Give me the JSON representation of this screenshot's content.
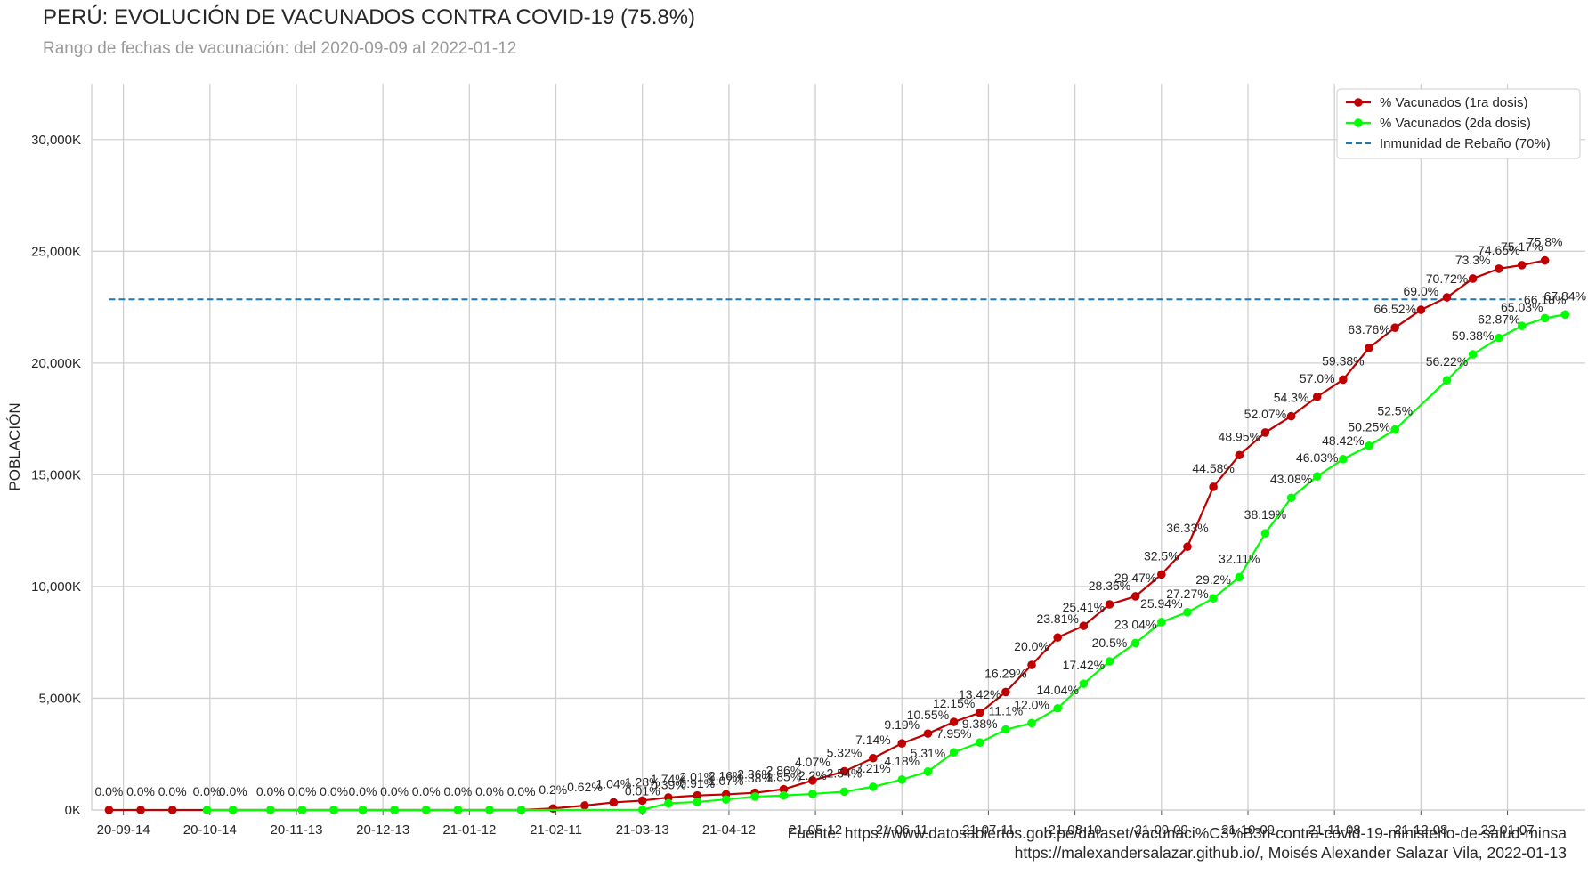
{
  "chart_data": {
    "type": "line",
    "title": "PERÚ: EVOLUCIÓN DE VACUNADOS CONTRA COVID-19 (75.8%)",
    "subtitle": "Rango de fechas de vacunación: del 2020-09-09 al 2022-01-12",
    "xlabel": "",
    "ylabel": "POBLACIÓN",
    "x_ticks": [
      "20-09-14",
      "20-10-14",
      "20-11-13",
      "20-12-13",
      "21-01-12",
      "21-02-11",
      "21-03-13",
      "21-04-12",
      "21-05-12",
      "21-06-11",
      "21-07-11",
      "21-08-10",
      "21-09-09",
      "21-10-09",
      "21-11-08",
      "21-12-08",
      "22-01-07"
    ],
    "y_ticks": [
      "0K",
      "5,000K",
      "10,000K",
      "15,000K",
      "20,000K",
      "25,000K",
      "30,000K"
    ],
    "xlim": [
      "2020-09-03",
      "2022-01-34"
    ],
    "ylim": [
      0,
      32500
    ],
    "grid": true,
    "legend_position": "top-right",
    "colors": {
      "dose1": "#c00000",
      "dose2": "#00ff00",
      "herd": "#1f77b4"
    },
    "reference_line": {
      "name": "Inmunidad de Rebaño (70%)",
      "y": 22850,
      "x_start": "2020-09-09",
      "x_end": "2022-01-12"
    },
    "series": [
      {
        "name": "% Vacunados (1ra dosis)",
        "points": [
          {
            "x": "2020-09-09",
            "y": 0,
            "label": "0.0%"
          },
          {
            "x": "2020-09-20",
            "y": 0,
            "label": "0.0%"
          },
          {
            "x": "2020-10-01",
            "y": 0,
            "label": "0.0%"
          },
          {
            "x": "2020-10-13",
            "y": 0,
            "label": "0.0%"
          },
          {
            "x": "2020-10-22",
            "y": 0,
            "label": "0.0%"
          },
          {
            "x": "2020-11-04",
            "y": 0,
            "label": "0.0%"
          },
          {
            "x": "2020-11-15",
            "y": 0,
            "label": "0.0%"
          },
          {
            "x": "2020-11-26",
            "y": 0,
            "label": "0.0%"
          },
          {
            "x": "2020-12-06",
            "y": 0,
            "label": "0.0%"
          },
          {
            "x": "2020-12-17",
            "y": 0,
            "label": "0.0%"
          },
          {
            "x": "2020-12-28",
            "y": 0,
            "label": "0.0%"
          },
          {
            "x": "2021-01-08",
            "y": 0,
            "label": "0.0%"
          },
          {
            "x": "2021-01-19",
            "y": 0,
            "label": "0.0%"
          },
          {
            "x": "2021-01-30",
            "y": 0,
            "label": "0.0%"
          },
          {
            "x": "2021-02-10",
            "y": 70,
            "label": "0.2%"
          },
          {
            "x": "2021-02-21",
            "y": 200,
            "label": "0.62%"
          },
          {
            "x": "2021-03-03",
            "y": 340,
            "label": "1.04%"
          },
          {
            "x": "2021-03-13",
            "y": 420,
            "label": "1.28%"
          },
          {
            "x": "2021-03-22",
            "y": 560,
            "label": "1.74%"
          },
          {
            "x": "2021-04-01",
            "y": 650,
            "label": "2.01%"
          },
          {
            "x": "2021-04-11",
            "y": 700,
            "label": "2.16%"
          },
          {
            "x": "2021-04-21",
            "y": 770,
            "label": "2.36%"
          },
          {
            "x": "2021-05-01",
            "y": 930,
            "label": "2.86%"
          },
          {
            "x": "2021-05-11",
            "y": 1320,
            "label": "4.07%"
          },
          {
            "x": "2021-05-22",
            "y": 1730,
            "label": "5.32%"
          },
          {
            "x": "2021-06-01",
            "y": 2320,
            "label": "7.14%"
          },
          {
            "x": "2021-06-11",
            "y": 2980,
            "label": "9.19%"
          },
          {
            "x": "2021-06-20",
            "y": 3420,
            "label": "10.55%"
          },
          {
            "x": "2021-06-29",
            "y": 3940,
            "label": "12.15%"
          },
          {
            "x": "2021-07-08",
            "y": 4350,
            "label": "13.42%"
          },
          {
            "x": "2021-07-17",
            "y": 5280,
            "label": "16.29%"
          },
          {
            "x": "2021-07-26",
            "y": 6490,
            "label": "20.0%"
          },
          {
            "x": "2021-08-04",
            "y": 7720,
            "label": "23.81%"
          },
          {
            "x": "2021-08-13",
            "y": 8240,
            "label": "25.41%"
          },
          {
            "x": "2021-08-22",
            "y": 9200,
            "label": "28.36%"
          },
          {
            "x": "2021-08-31",
            "y": 9560,
            "label": "29.47%"
          },
          {
            "x": "2021-09-09",
            "y": 10540,
            "label": "32.5%"
          },
          {
            "x": "2021-09-18",
            "y": 11780,
            "label": "36.33%"
          },
          {
            "x": "2021-09-27",
            "y": 14460,
            "label": "44.58%"
          },
          {
            "x": "2021-10-06",
            "y": 15880,
            "label": "48.95%"
          },
          {
            "x": "2021-10-15",
            "y": 16890,
            "label": "52.07%"
          },
          {
            "x": "2021-10-24",
            "y": 17620,
            "label": "54.3%"
          },
          {
            "x": "2021-11-02",
            "y": 18490,
            "label": "57.0%"
          },
          {
            "x": "2021-11-11",
            "y": 19260,
            "label": "59.38%"
          },
          {
            "x": "2021-11-20",
            "y": 20680,
            "label": "63.76%"
          },
          {
            "x": "2021-11-29",
            "y": 21580,
            "label": "66.52%"
          },
          {
            "x": "2021-12-08",
            "y": 22380,
            "label": "69.0%"
          },
          {
            "x": "2021-12-17",
            "y": 22940,
            "label": "70.72%"
          },
          {
            "x": "2021-12-26",
            "y": 23780,
            "label": "73.3%"
          },
          {
            "x": "2022-01-04",
            "y": 24220,
            "label": "74.65%"
          },
          {
            "x": "2022-01-12",
            "y": 24380,
            "label": "75.17%"
          },
          {
            "x": "2022-01-20",
            "y": 24590,
            "label": "75.8%"
          }
        ]
      },
      {
        "name": "% Vacunados (2da dosis)",
        "points": [
          {
            "x": "2020-10-13",
            "y": 0,
            "label": ""
          },
          {
            "x": "2020-10-22",
            "y": 0,
            "label": ""
          },
          {
            "x": "2020-11-04",
            "y": 0,
            "label": ""
          },
          {
            "x": "2020-11-15",
            "y": 0,
            "label": ""
          },
          {
            "x": "2020-11-26",
            "y": 0,
            "label": ""
          },
          {
            "x": "2020-12-06",
            "y": 0,
            "label": ""
          },
          {
            "x": "2020-12-17",
            "y": 0,
            "label": ""
          },
          {
            "x": "2020-12-28",
            "y": 0,
            "label": ""
          },
          {
            "x": "2021-01-08",
            "y": 0,
            "label": ""
          },
          {
            "x": "2021-01-19",
            "y": 0,
            "label": ""
          },
          {
            "x": "2021-01-30",
            "y": 0,
            "label": ""
          },
          {
            "x": "2021-03-13",
            "y": 10,
            "label": "0.01%"
          },
          {
            "x": "2021-03-22",
            "y": 300,
            "label": "0.39%"
          },
          {
            "x": "2021-04-01",
            "y": 360,
            "label": "0.91%"
          },
          {
            "x": "2021-04-11",
            "y": 470,
            "label": "1.07%"
          },
          {
            "x": "2021-04-21",
            "y": 600,
            "label": "1.38%"
          },
          {
            "x": "2021-05-01",
            "y": 650,
            "label": "1.85%"
          },
          {
            "x": "2021-05-11",
            "y": 720,
            "label": "2.2%"
          },
          {
            "x": "2021-05-22",
            "y": 820,
            "label": "2.54%"
          },
          {
            "x": "2021-06-01",
            "y": 1040,
            "label": "3.21%"
          },
          {
            "x": "2021-06-11",
            "y": 1360,
            "label": "4.18%"
          },
          {
            "x": "2021-06-20",
            "y": 1720,
            "label": "5.31%"
          },
          {
            "x": "2021-06-29",
            "y": 2580,
            "label": "7.95%"
          },
          {
            "x": "2021-07-08",
            "y": 3020,
            "label": "9.38%"
          },
          {
            "x": "2021-07-17",
            "y": 3600,
            "label": "11.1%"
          },
          {
            "x": "2021-07-26",
            "y": 3890,
            "label": "12.0%"
          },
          {
            "x": "2021-08-04",
            "y": 4550,
            "label": "14.04%"
          },
          {
            "x": "2021-08-13",
            "y": 5650,
            "label": "17.42%"
          },
          {
            "x": "2021-08-22",
            "y": 6650,
            "label": "20.5%"
          },
          {
            "x": "2021-08-31",
            "y": 7470,
            "label": "23.04%"
          },
          {
            "x": "2021-09-09",
            "y": 8410,
            "label": "25.94%"
          },
          {
            "x": "2021-09-18",
            "y": 8850,
            "label": "27.27%"
          },
          {
            "x": "2021-09-27",
            "y": 9470,
            "label": "29.2%"
          },
          {
            "x": "2021-10-06",
            "y": 10420,
            "label": "32.11%"
          },
          {
            "x": "2021-10-15",
            "y": 12380,
            "label": "38.19%"
          },
          {
            "x": "2021-10-24",
            "y": 13970,
            "label": "43.08%"
          },
          {
            "x": "2021-11-02",
            "y": 14930,
            "label": "46.03%"
          },
          {
            "x": "2021-11-11",
            "y": 15700,
            "label": "48.42%"
          },
          {
            "x": "2021-11-20",
            "y": 16300,
            "label": "50.25%"
          },
          {
            "x": "2021-11-29",
            "y": 17020,
            "label": "52.5%"
          },
          {
            "x": "2021-12-17",
            "y": 19230,
            "label": "56.22%"
          },
          {
            "x": "2021-12-26",
            "y": 20390,
            "label": "59.38%"
          },
          {
            "x": "2022-01-04",
            "y": 21120,
            "label": "62.87%"
          },
          {
            "x": "2022-01-12",
            "y": 21660,
            "label": "65.03%"
          },
          {
            "x": "2022-01-20",
            "y": 22010,
            "label": "66.18%"
          },
          {
            "x": "2022-01-27",
            "y": 22170,
            "label": "67.84%"
          }
        ]
      }
    ]
  },
  "footer": {
    "source_line1": "Fuente: https://www.datosabiertos.gob.pe/dataset/vacunaci%C3%B3n-contra-covid-19-ministerio-de-salud-minsa",
    "source_line2": "https://malexandersalazar.github.io/, Moisés Alexander Salazar Vila, 2022-01-13"
  }
}
